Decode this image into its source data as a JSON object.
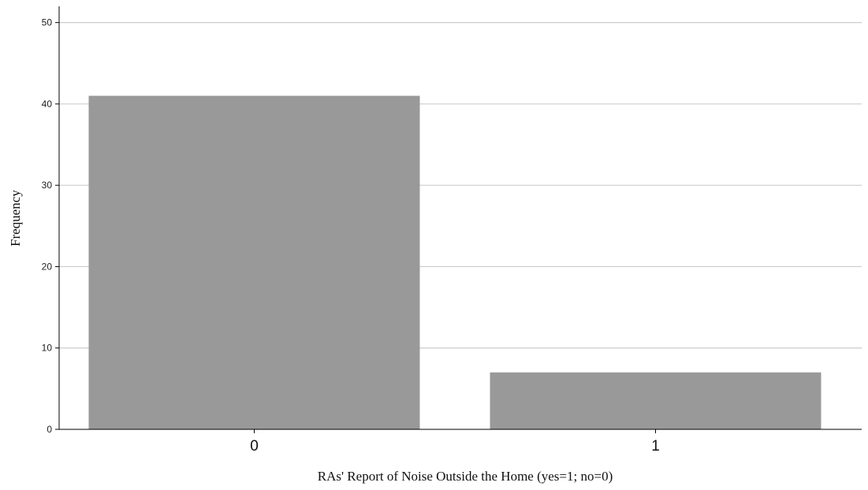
{
  "chart_data": {
    "type": "bar",
    "categories": [
      "0",
      "1"
    ],
    "values": [
      41,
      7
    ],
    "title": "",
    "xlabel": "RAs' Report of Noise Outside the Home (yes=1; no=0)",
    "ylabel": "Frequency",
    "ylim": [
      0,
      52
    ],
    "yticks": [
      0,
      10,
      20,
      30,
      40,
      50
    ],
    "grid": true,
    "bar_color": "#999999",
    "grid_color": "#cccccc",
    "axis_color": "#000000"
  }
}
